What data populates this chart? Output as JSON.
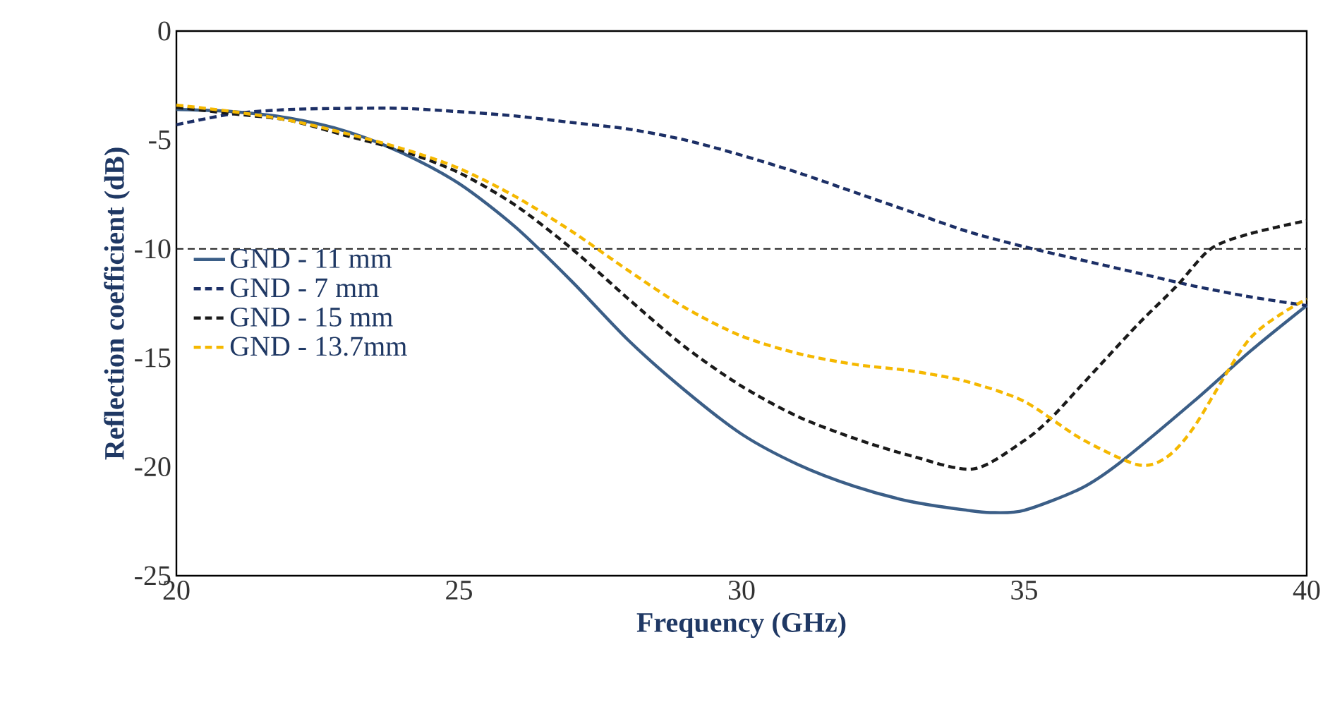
{
  "chart_data": {
    "type": "line",
    "xlabel": "Frequency (GHz)",
    "ylabel": "Reflection coefficient (dB)",
    "xlim": [
      20,
      40
    ],
    "ylim": [
      -25,
      0
    ],
    "xticks": [
      20,
      25,
      30,
      35,
      40
    ],
    "yticks": [
      -25,
      -20,
      -15,
      -10,
      -5,
      0
    ],
    "grid": false,
    "legend": "left",
    "marker": "none",
    "series": [
      {
        "name": "GND - 11 mm",
        "color": "#3b5e87",
        "line_style": "solid",
        "x": [
          20,
          21,
          22,
          23,
          24,
          25,
          26,
          27,
          28,
          29,
          30,
          31,
          32,
          33,
          34,
          34.4,
          35,
          36,
          36.7,
          38,
          39,
          40
        ],
        "values": [
          -3.6,
          -3.7,
          -4.0,
          -4.6,
          -5.6,
          -7.0,
          -9.0,
          -11.5,
          -14.2,
          -16.5,
          -18.5,
          -19.9,
          -20.9,
          -21.6,
          -22.0,
          -22.1,
          -22.0,
          -21.0,
          -19.8,
          -17.0,
          -14.7,
          -12.6
        ]
      },
      {
        "name": "GND - 7 mm",
        "color": "#1c2f66",
        "line_style": "dashed",
        "x": [
          20,
          21,
          22,
          23,
          24,
          25,
          26,
          27,
          28,
          29,
          30,
          31,
          32,
          33,
          34,
          35,
          36,
          37,
          38,
          39,
          40
        ],
        "values": [
          -4.3,
          -3.8,
          -3.6,
          -3.55,
          -3.55,
          -3.7,
          -3.9,
          -4.2,
          -4.5,
          -5.0,
          -5.7,
          -6.5,
          -7.4,
          -8.3,
          -9.2,
          -9.9,
          -10.5,
          -11.1,
          -11.7,
          -12.2,
          -12.6
        ]
      },
      {
        "name": "GND - 15 mm",
        "color": "#1a1a1a",
        "line_style": "dashed",
        "x": [
          20,
          21,
          22,
          23,
          24,
          25,
          26,
          27,
          28,
          29,
          30,
          31,
          32,
          33,
          34.1,
          35,
          35.5,
          36,
          37,
          37.7,
          38.3,
          39,
          40
        ],
        "values": [
          -3.5,
          -3.8,
          -4.1,
          -4.8,
          -5.5,
          -6.5,
          -8.0,
          -10.0,
          -12.3,
          -14.5,
          -16.3,
          -17.7,
          -18.7,
          -19.5,
          -20.1,
          -18.8,
          -17.7,
          -16.3,
          -13.5,
          -11.7,
          -10.0,
          -9.3,
          -8.7
        ]
      },
      {
        "name": "GND - 13.7mm",
        "color": "#f5b800",
        "line_style": "dashed",
        "x": [
          20,
          21,
          22,
          23,
          24,
          25,
          26,
          27,
          28,
          29,
          30,
          31,
          32,
          33,
          34,
          35,
          36,
          37,
          37.5,
          38,
          39,
          40
        ],
        "values": [
          -3.4,
          -3.7,
          -4.1,
          -4.7,
          -5.4,
          -6.3,
          -7.6,
          -9.2,
          -11.0,
          -12.7,
          -14.0,
          -14.8,
          -15.3,
          -15.6,
          -16.1,
          -17.0,
          -18.7,
          -19.9,
          -19.6,
          -18.2,
          -14.1,
          -12.3
        ]
      }
    ],
    "ref_lines": [
      {
        "axis": "y",
        "value": -10,
        "color": "#1a1a1a",
        "line_style": "dashed"
      }
    ]
  }
}
